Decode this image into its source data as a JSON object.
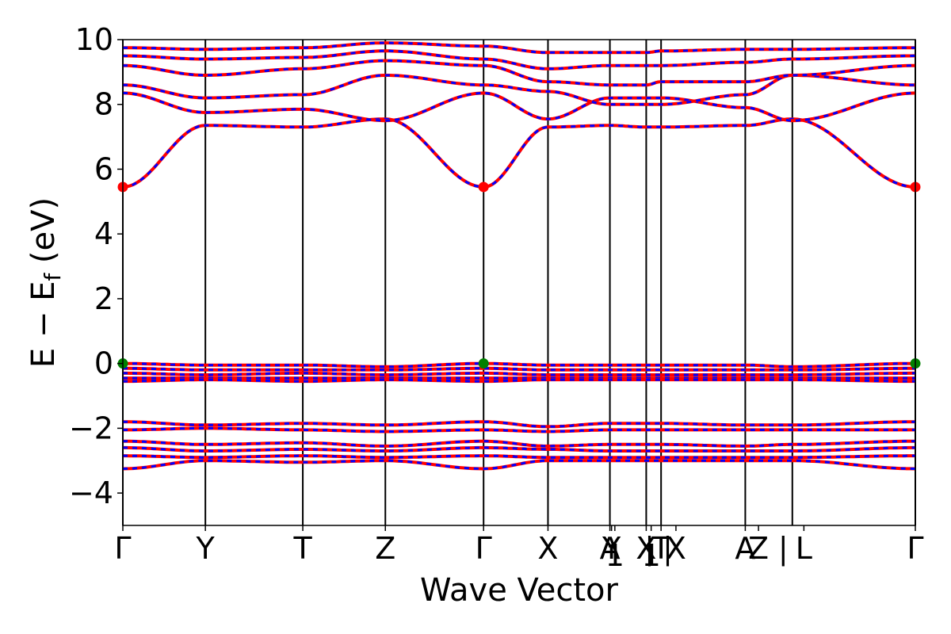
{
  "chart_data": {
    "type": "line",
    "title": "",
    "xlabel": "Wave Vector",
    "ylabel": "E − E",
    "ylabel_sub": "f",
    "ylabel_unit": " (eV)",
    "ylim": [
      -5,
      10
    ],
    "yticks": [
      {
        "value": -4,
        "label": "−4"
      },
      {
        "value": -2,
        "label": "−2"
      },
      {
        "value": 0,
        "label": "0"
      },
      {
        "value": 2,
        "label": "2"
      },
      {
        "value": 4,
        "label": "4"
      },
      {
        "value": 6,
        "label": "6"
      },
      {
        "value": 8,
        "label": "8"
      },
      {
        "value": 10,
        "label": "10"
      }
    ],
    "xlim": [
      0,
      9.6
    ],
    "kpoints": [
      {
        "k": 0.0,
        "label": "Γ"
      },
      {
        "k": 1.0,
        "label": "Y"
      },
      {
        "k": 2.18,
        "label": "T"
      },
      {
        "k": 3.18,
        "label": "Z"
      },
      {
        "k": 4.37,
        "label": "Γ"
      },
      {
        "k": 5.15,
        "label": "X"
      },
      {
        "k": 5.9,
        "label": "A"
      },
      {
        "k": 5.92,
        "label": "Y"
      },
      {
        "k": 5.96,
        "label": "1"
      },
      {
        "k": 6.34,
        "label": "X"
      },
      {
        "k": 6.4,
        "label": "1"
      },
      {
        "k": 6.52,
        "label": "T"
      },
      {
        "k": 6.7,
        "label": "X"
      },
      {
        "k": 7.54,
        "label": "A"
      },
      {
        "k": 7.7,
        "label": "Z"
      },
      {
        "k": 8.25,
        "label": "L"
      },
      {
        "k": 9.6,
        "label": "Γ"
      }
    ],
    "separator_labels": [
      {
        "k": 6.38,
        "label": "|"
      },
      {
        "k": 6.6,
        "label": "|"
      },
      {
        "k": 8.0,
        "label": "|"
      }
    ],
    "vertical_lines": [
      0,
      1.0,
      2.18,
      3.18,
      4.37,
      5.15,
      5.9,
      6.34,
      6.52,
      7.54,
      8.11,
      9.6
    ],
    "series_style": {
      "spin_up_color": "#ff0000",
      "spin_down_color": "#0000ff"
    },
    "bands": [
      {
        "k": [
          0,
          1,
          2.18,
          3.18,
          4.37,
          5.15,
          5.9,
          6.34,
          6.52,
          7.54,
          8.11,
          9.6
        ],
        "e": [
          5.45,
          7.35,
          7.3,
          7.55,
          5.45,
          7.3,
          7.35,
          7.3,
          7.3,
          7.35,
          7.55,
          5.45
        ]
      },
      {
        "k": [
          0,
          1,
          2.18,
          3.18,
          4.37,
          5.15,
          5.9,
          6.34,
          6.52,
          7.54,
          8.11,
          9.6
        ],
        "e": [
          8.35,
          7.75,
          7.85,
          7.5,
          8.35,
          7.55,
          8.2,
          8.2,
          8.2,
          7.9,
          7.5,
          8.35
        ]
      },
      {
        "k": [
          0,
          1,
          2.18,
          3.18,
          4.37,
          5.15,
          5.9,
          6.34,
          6.52,
          7.54,
          8.11,
          9.6
        ],
        "e": [
          8.6,
          8.2,
          8.3,
          8.9,
          8.6,
          8.4,
          8.0,
          8.0,
          8.0,
          8.3,
          8.9,
          8.6
        ]
      },
      {
        "k": [
          0,
          1,
          2.18,
          3.18,
          4.37,
          5.15,
          5.9,
          6.34,
          6.52,
          7.54,
          8.11,
          9.6
        ],
        "e": [
          9.2,
          8.9,
          9.1,
          9.35,
          9.2,
          8.7,
          8.6,
          8.6,
          8.7,
          8.7,
          8.9,
          9.2
        ]
      },
      {
        "k": [
          0,
          1,
          2.18,
          3.18,
          4.37,
          5.15,
          5.9,
          6.34,
          6.52,
          7.54,
          8.11,
          9.6
        ],
        "e": [
          9.5,
          9.4,
          9.45,
          9.65,
          9.4,
          9.1,
          9.2,
          9.2,
          9.2,
          9.3,
          9.4,
          9.5
        ]
      },
      {
        "k": [
          0,
          1,
          2.18,
          3.18,
          4.37,
          5.15,
          5.9,
          6.34,
          6.52,
          7.54,
          8.11,
          9.6
        ],
        "e": [
          9.75,
          9.7,
          9.75,
          9.9,
          9.8,
          9.6,
          9.6,
          9.6,
          9.65,
          9.7,
          9.7,
          9.75
        ]
      },
      {
        "k": [
          0,
          1,
          2.18,
          3.18,
          4.37,
          5.15,
          5.9,
          6.34,
          6.52,
          7.54,
          8.11,
          9.6
        ],
        "e": [
          0.0,
          -0.05,
          -0.05,
          -0.1,
          0.0,
          -0.05,
          -0.05,
          -0.05,
          -0.05,
          -0.05,
          -0.1,
          0.0
        ]
      },
      {
        "k": [
          0,
          1,
          2.18,
          3.18,
          4.37,
          5.15,
          5.9,
          6.34,
          6.52,
          7.54,
          8.11,
          9.6
        ],
        "e": [
          -0.15,
          -0.2,
          -0.2,
          -0.2,
          -0.15,
          -0.2,
          -0.2,
          -0.2,
          -0.2,
          -0.2,
          -0.2,
          -0.15
        ]
      },
      {
        "k": [
          0,
          1,
          2.18,
          3.18,
          4.37,
          5.15,
          5.9,
          6.34,
          6.52,
          7.54,
          8.11,
          9.6
        ],
        "e": [
          -0.3,
          -0.35,
          -0.3,
          -0.35,
          -0.3,
          -0.35,
          -0.35,
          -0.35,
          -0.35,
          -0.35,
          -0.35,
          -0.3
        ]
      },
      {
        "k": [
          0,
          1,
          2.18,
          3.18,
          4.37,
          5.15,
          5.9,
          6.34,
          6.52,
          7.54,
          8.11,
          9.6
        ],
        "e": [
          -0.45,
          -0.45,
          -0.45,
          -0.45,
          -0.45,
          -0.45,
          -0.45,
          -0.45,
          -0.45,
          -0.45,
          -0.45,
          -0.45
        ]
      },
      {
        "k": [
          0,
          1,
          2.18,
          3.18,
          4.37,
          5.15,
          5.9,
          6.34,
          6.52,
          7.54,
          8.11,
          9.6
        ],
        "e": [
          -0.55,
          -0.5,
          -0.55,
          -0.5,
          -0.55,
          -0.5,
          -0.5,
          -0.5,
          -0.5,
          -0.5,
          -0.5,
          -0.55
        ]
      },
      {
        "k": [
          0,
          1,
          2.18,
          3.18,
          4.37,
          5.15,
          5.9,
          6.34,
          6.52,
          7.54,
          8.11,
          9.6
        ],
        "e": [
          -1.8,
          -1.9,
          -1.85,
          -1.9,
          -1.8,
          -1.95,
          -1.85,
          -1.85,
          -1.85,
          -1.9,
          -1.9,
          -1.8
        ]
      },
      {
        "k": [
          0,
          1,
          2.18,
          3.18,
          4.37,
          5.15,
          5.9,
          6.34,
          6.52,
          7.54,
          8.11,
          9.6
        ],
        "e": [
          -2.05,
          -2.0,
          -2.05,
          -2.1,
          -2.05,
          -2.1,
          -2.05,
          -2.05,
          -2.05,
          -2.05,
          -2.05,
          -2.05
        ]
      },
      {
        "k": [
          0,
          1,
          2.18,
          3.18,
          4.37,
          5.15,
          5.9,
          6.34,
          6.52,
          7.54,
          8.11,
          9.6
        ],
        "e": [
          -2.4,
          -2.5,
          -2.45,
          -2.55,
          -2.4,
          -2.55,
          -2.5,
          -2.5,
          -2.5,
          -2.55,
          -2.5,
          -2.4
        ]
      },
      {
        "k": [
          0,
          1,
          2.18,
          3.18,
          4.37,
          5.15,
          5.9,
          6.34,
          6.52,
          7.54,
          8.11,
          9.6
        ],
        "e": [
          -2.6,
          -2.7,
          -2.65,
          -2.7,
          -2.6,
          -2.65,
          -2.7,
          -2.7,
          -2.7,
          -2.7,
          -2.7,
          -2.6
        ]
      },
      {
        "k": [
          0,
          1,
          2.18,
          3.18,
          4.37,
          5.15,
          5.9,
          6.34,
          6.52,
          7.54,
          8.11,
          9.6
        ],
        "e": [
          -2.85,
          -2.9,
          -2.85,
          -2.9,
          -2.85,
          -2.9,
          -2.9,
          -2.9,
          -2.9,
          -2.9,
          -2.9,
          -2.85
        ]
      },
      {
        "k": [
          0,
          1,
          2.18,
          3.18,
          4.37,
          5.15,
          5.9,
          6.34,
          6.52,
          7.54,
          8.11,
          9.6
        ],
        "e": [
          -3.25,
          -3.0,
          -3.05,
          -3.0,
          -3.25,
          -3.0,
          -3.0,
          -3.0,
          -3.0,
          -3.0,
          -3.0,
          -3.25
        ]
      }
    ],
    "markers": [
      {
        "k": 0.0,
        "e": 5.45,
        "color": "#ff0000"
      },
      {
        "k": 4.37,
        "e": 5.45,
        "color": "#ff0000"
      },
      {
        "k": 9.6,
        "e": 5.45,
        "color": "#ff0000"
      },
      {
        "k": 0.0,
        "e": 0.0,
        "color": "#008000"
      },
      {
        "k": 4.37,
        "e": 0.0,
        "color": "#008000"
      },
      {
        "k": 9.6,
        "e": 0.0,
        "color": "#008000"
      }
    ]
  }
}
